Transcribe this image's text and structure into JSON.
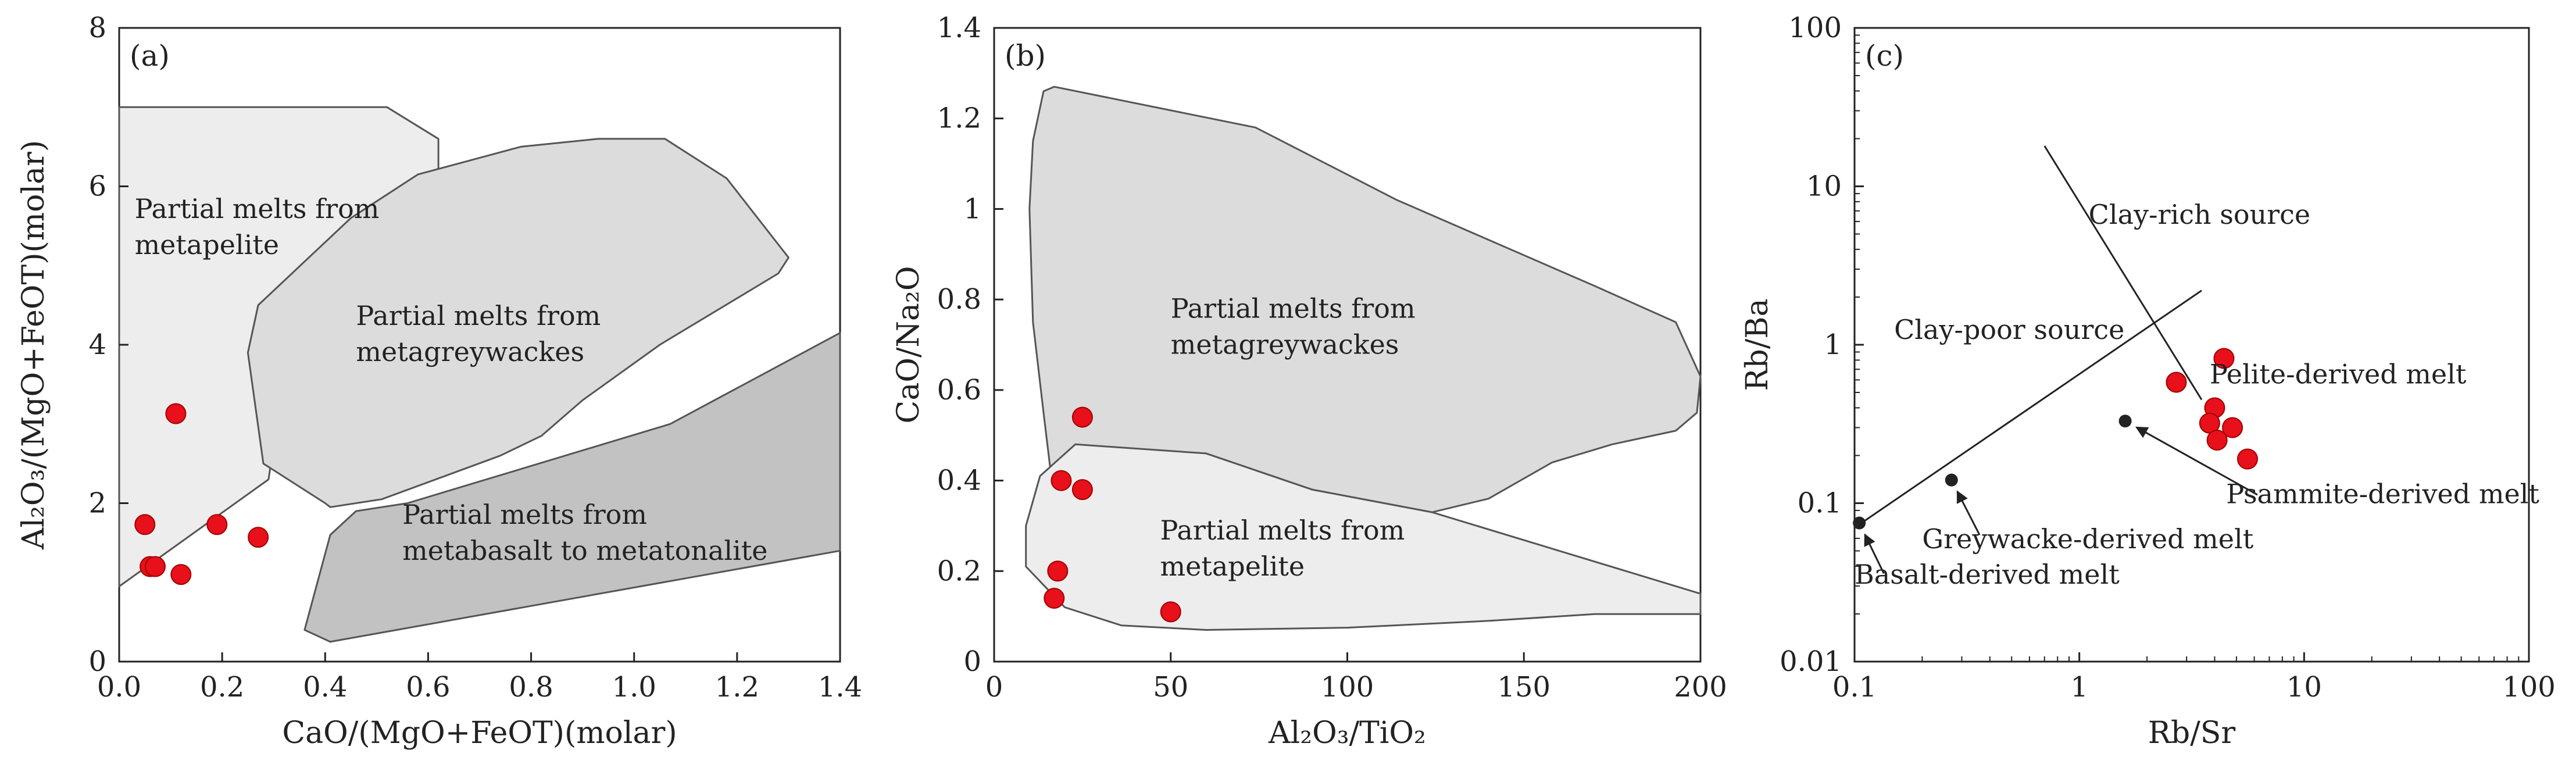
{
  "colors": {
    "axis": "#222222",
    "field_light": "#ededed",
    "field_mid": "#dcdcdc",
    "field_dark": "#c2c2c2",
    "field_stroke": "#555555",
    "sample_fill": "#e8101a",
    "sample_stroke": "#a00000",
    "reference_point": "#222222"
  },
  "chart_data": [
    {
      "type": "scatter",
      "panel_label": "(a)",
      "xlabel": "CaO/(MgO+FeOT)(molar)",
      "ylabel": "Al₂O₃/(MgO+FeOT)(molar)",
      "xlim": [
        0,
        1.4
      ],
      "ylim": [
        0,
        8
      ],
      "xticks": [
        "0.0",
        "0.2",
        "0.4",
        "0.6",
        "0.8",
        "1.0",
        "1.2",
        "1.4"
      ],
      "yticks": [
        "0",
        "2",
        "4",
        "6",
        "8"
      ],
      "grid": false,
      "regions": [
        {
          "label_lines": [
            "Partial melts from",
            "metapelite"
          ],
          "shade": "light",
          "label_at": [
            0.03,
            5.6
          ],
          "polygon": [
            [
              0,
              7
            ],
            [
              0.52,
              7
            ],
            [
              0.62,
              6.6
            ],
            [
              0.62,
              6.1
            ],
            [
              0.35,
              4.9
            ],
            [
              0.29,
              2.3
            ],
            [
              0,
              0.95
            ]
          ]
        },
        {
          "label_lines": [
            "Partial melts from",
            "metagreywackes"
          ],
          "shade": "mid",
          "label_at": [
            0.46,
            4.25
          ],
          "polygon": [
            [
              0.27,
              4.5
            ],
            [
              0.45,
              5.6
            ],
            [
              0.58,
              6.15
            ],
            [
              0.78,
              6.5
            ],
            [
              0.93,
              6.6
            ],
            [
              1.06,
              6.6
            ],
            [
              1.18,
              6.1
            ],
            [
              1.3,
              5.1
            ],
            [
              1.28,
              4.9
            ],
            [
              1.05,
              4.0
            ],
            [
              0.9,
              3.3
            ],
            [
              0.82,
              2.85
            ],
            [
              0.74,
              2.6
            ],
            [
              0.51,
              2.05
            ],
            [
              0.41,
              1.95
            ],
            [
              0.4,
              2.0
            ],
            [
              0.28,
              2.5
            ],
            [
              0.25,
              3.9
            ]
          ]
        },
        {
          "label_lines": [
            "Partial melts from",
            "metabasalt to metatonalite"
          ],
          "shade": "dark",
          "label_at": [
            0.55,
            1.74
          ],
          "polygon": [
            [
              0.41,
              0.25
            ],
            [
              1.4,
              1.4
            ],
            [
              1.4,
              4.15
            ],
            [
              1.07,
              3.0
            ],
            [
              0.56,
              2.0
            ],
            [
              0.46,
              1.9
            ],
            [
              0.41,
              1.6
            ],
            [
              0.36,
              0.4
            ]
          ]
        }
      ],
      "series": [
        {
          "name": "samples",
          "points": [
            [
              0.05,
              1.73
            ],
            [
              0.06,
              1.2
            ],
            [
              0.07,
              1.2
            ],
            [
              0.11,
              3.13
            ],
            [
              0.12,
              1.1
            ],
            [
              0.19,
              1.73
            ],
            [
              0.27,
              1.57
            ]
          ]
        }
      ]
    },
    {
      "type": "scatter",
      "panel_label": "(b)",
      "xlabel": "Al₂O₃/TiO₂",
      "ylabel": "CaO/Na₂O",
      "xlim": [
        0,
        200
      ],
      "ylim": [
        0,
        1.4
      ],
      "xticks": [
        "0",
        "50",
        "100",
        "150",
        "200"
      ],
      "yticks": [
        "0",
        "0.2",
        "0.4",
        "0.6",
        "0.8",
        "1",
        "1.2",
        "1.4"
      ],
      "grid": false,
      "regions": [
        {
          "label_lines": [
            "Partial melts from",
            "metagreywackes"
          ],
          "shade": "mid",
          "label_at": [
            50,
            0.76
          ],
          "polygon": [
            [
              14,
              1.26
            ],
            [
              17,
              1.27
            ],
            [
              74,
              1.18
            ],
            [
              114,
              1.02
            ],
            [
              170,
              0.83
            ],
            [
              193,
              0.75
            ],
            [
              200,
              0.63
            ],
            [
              199,
              0.55
            ],
            [
              193,
              0.51
            ],
            [
              175,
              0.48
            ],
            [
              158,
              0.44
            ],
            [
              140,
              0.36
            ],
            [
              124,
              0.33
            ],
            [
              90,
              0.38
            ],
            [
              60,
              0.46
            ],
            [
              22,
              0.47
            ],
            [
              16,
              0.42
            ],
            [
              14,
              0.55
            ],
            [
              11,
              0.75
            ],
            [
              10,
              1.0
            ],
            [
              11,
              1.15
            ]
          ]
        },
        {
          "label_lines": [
            "Partial melts from",
            "metapelite"
          ],
          "shade": "light",
          "label_at": [
            47,
            0.27
          ],
          "polygon": [
            [
              23,
              0.48
            ],
            [
              60,
              0.46
            ],
            [
              90,
              0.38
            ],
            [
              124,
              0.33
            ],
            [
              200,
              0.15
            ],
            [
              200,
              0.105
            ],
            [
              170,
              0.105
            ],
            [
              140,
              0.09
            ],
            [
              100,
              0.075
            ],
            [
              60,
              0.07
            ],
            [
              36,
              0.08
            ],
            [
              20,
              0.12
            ],
            [
              9,
              0.21
            ],
            [
              9,
              0.3
            ],
            [
              13,
              0.41
            ]
          ]
        }
      ],
      "series": [
        {
          "name": "samples",
          "points": [
            [
              17,
              0.14
            ],
            [
              18,
              0.2
            ],
            [
              19,
              0.4
            ],
            [
              25,
              0.38
            ],
            [
              25,
              0.54
            ],
            [
              50,
              0.11
            ]
          ]
        }
      ]
    },
    {
      "type": "scatter",
      "panel_label": "(c)",
      "xlabel": "Rb/Sr",
      "ylabel": "Rb/Ba",
      "xscale": "log",
      "yscale": "log",
      "xlim": [
        0.1,
        100
      ],
      "ylim": [
        0.01,
        100
      ],
      "xticks": [
        "0.1",
        "1",
        "10",
        "100"
      ],
      "yticks": [
        "0.01",
        "0.1",
        "1",
        "10",
        "100"
      ],
      "grid": false,
      "lines": [
        {
          "from": [
            0.1,
            0.07
          ],
          "to": [
            3.5,
            2.2
          ]
        },
        {
          "from": [
            0.7,
            18
          ],
          "to": [
            3.5,
            0.45
          ]
        }
      ],
      "labels": [
        {
          "text": "Clay-rich source",
          "at": [
            1.1,
            5.8
          ]
        },
        {
          "text": "Clay-poor source",
          "at": [
            0.15,
            1.09
          ]
        },
        {
          "text": "Pelite-derived melt",
          "at": [
            3.8,
            0.57
          ]
        }
      ],
      "reference_points": [
        {
          "name": "Basalt-derived melt",
          "point": [
            0.105,
            0.075
          ],
          "label_at": [
            0.1,
            0.031
          ],
          "arrow_from": [
            0.135,
            0.036
          ]
        },
        {
          "name": "Greywacke-derived melt",
          "point": [
            0.27,
            0.14
          ],
          "label_at": [
            0.2,
            0.052
          ],
          "arrow_from": [
            0.36,
            0.063
          ]
        },
        {
          "name": "Psammite-derived melt",
          "point": [
            1.6,
            0.33
          ],
          "label_at": [
            4.5,
            0.1
          ],
          "arrow_from": [
            6.2,
            0.113
          ]
        }
      ],
      "series": [
        {
          "name": "samples",
          "points": [
            [
              2.7,
              0.58
            ],
            [
              4.0,
              0.4
            ],
            [
              3.8,
              0.32
            ],
            [
              4.1,
              0.25
            ],
            [
              4.4,
              0.82
            ],
            [
              4.8,
              0.3
            ],
            [
              5.6,
              0.19
            ]
          ]
        }
      ]
    }
  ]
}
